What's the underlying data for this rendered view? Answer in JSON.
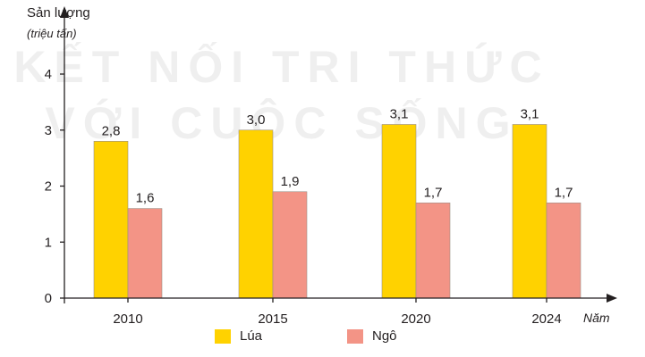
{
  "colors": {
    "rice": "#ffd200",
    "corn": "#f39486",
    "axis": "#231f20"
  },
  "chart_data": {
    "type": "bar",
    "ylabel": "Sản lượng",
    "yunit": "(triệu tấn)",
    "xlabel": "Năm",
    "categories": [
      "2010",
      "2015",
      "2020",
      "2024"
    ],
    "series": [
      {
        "name": "Lúa",
        "values": [
          2.8,
          3.0,
          3.1,
          3.1
        ],
        "labels": [
          "2,8",
          "3,0",
          "3,1",
          "3,1"
        ]
      },
      {
        "name": "Ngô",
        "values": [
          1.6,
          1.9,
          1.7,
          1.7
        ],
        "labels": [
          "1,6",
          "1,9",
          "1,7",
          "1,7"
        ]
      }
    ],
    "yticks": [
      0,
      1,
      2,
      3,
      4
    ],
    "ylim": [
      0,
      4
    ],
    "grid": false,
    "legend": "bottom"
  },
  "watermark": {
    "line1": "KẾT NỐI TRI THỨC",
    "line2": "VỚI CUỘC SỐNG"
  }
}
